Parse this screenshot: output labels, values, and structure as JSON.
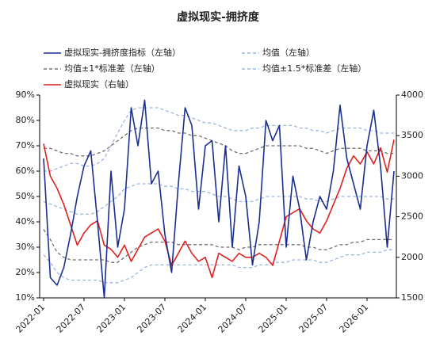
{
  "chart_data": {
    "type": "line",
    "title": "虚拟现实-拥挤度",
    "categories": [
      "2022-01",
      null,
      null,
      null,
      null,
      null,
      "2022-07",
      null,
      null,
      null,
      null,
      null,
      "2023-01",
      null,
      null,
      null,
      null,
      null,
      "2023-07",
      null,
      null,
      null,
      null,
      null,
      "2024-01",
      null,
      null,
      null,
      null,
      null,
      "2024-07",
      null,
      null,
      null,
      null,
      null,
      "2025-01",
      null,
      null,
      null,
      null,
      null,
      "2025-07",
      null,
      null,
      null,
      null,
      null,
      "2026-01",
      null,
      null,
      null,
      null
    ],
    "ylim": [
      10,
      90
    ],
    "yticks": [
      {
        "value": 10,
        "label": "10%"
      },
      {
        "value": 20,
        "label": "20%"
      },
      {
        "value": 30,
        "label": "30%"
      },
      {
        "value": 40,
        "label": "40%"
      },
      {
        "value": 50,
        "label": "50%"
      },
      {
        "value": 60,
        "label": "60%"
      },
      {
        "value": 70,
        "label": "70%"
      },
      {
        "value": 80,
        "label": "80%"
      },
      {
        "value": 90,
        "label": "90%"
      }
    ],
    "y2lim": [
      1500,
      4000
    ],
    "y2ticks": [
      1500,
      2000,
      2500,
      3000,
      3500,
      4000
    ],
    "series": [
      {
        "name": "虚拟现实-拥挤度指标（左轴）",
        "color": "#1a2f8f",
        "dash": false,
        "values": [
          65,
          18,
          15,
          22,
          35,
          50,
          62,
          68,
          40,
          10,
          60,
          30,
          45,
          85,
          70,
          88,
          55,
          60,
          35,
          20,
          55,
          85,
          78,
          45,
          70,
          72,
          40,
          70,
          30,
          62,
          50,
          23,
          40,
          80,
          72,
          78,
          30,
          58,
          45,
          25,
          40,
          50,
          45,
          60,
          86,
          65,
          55,
          45,
          70,
          84,
          62,
          30,
          60
        ]
      },
      {
        "name": "均值（左轴）",
        "color": "#9ab6e0",
        "dash": true,
        "values": [
          48,
          47,
          46,
          45,
          44,
          43,
          43,
          43,
          44,
          46,
          48,
          50,
          53,
          54,
          55,
          55,
          55,
          55,
          54,
          54,
          53,
          53,
          52,
          52,
          52,
          51,
          50,
          50,
          49,
          48,
          48,
          48,
          49,
          50,
          50,
          50,
          50,
          50,
          50,
          49,
          49,
          48,
          48,
          49,
          50,
          50,
          50,
          50,
          50,
          50,
          50,
          49,
          49
        ]
      },
      {
        "name": "均值±1*标准差（左轴）",
        "color": "#707070",
        "dash": true,
        "upper": [
          69,
          69,
          68,
          67,
          67,
          66,
          66,
          66,
          67,
          68,
          70,
          72,
          74,
          76,
          77,
          77,
          77,
          77,
          76,
          76,
          75,
          75,
          74,
          74,
          73,
          72,
          71,
          70,
          68,
          67,
          67,
          68,
          69,
          70,
          70,
          70,
          70,
          70,
          70,
          69,
          69,
          68,
          67,
          68,
          69,
          69,
          69,
          69,
          68,
          68,
          68,
          67,
          67
        ],
        "lower": [
          37,
          33,
          28,
          26,
          25,
          25,
          25,
          25,
          25,
          25,
          24,
          24,
          26,
          28,
          30,
          31,
          32,
          32,
          32,
          32,
          31,
          31,
          31,
          31,
          31,
          31,
          30,
          30,
          30,
          29,
          30,
          30,
          31,
          31,
          31,
          31,
          31,
          31,
          31,
          30,
          30,
          29,
          29,
          30,
          31,
          31,
          32,
          32,
          33,
          33,
          33,
          33,
          33
        ]
      },
      {
        "name": "均值±1.5*标准差（左轴）",
        "color": "#9ab6e0",
        "dash": true,
        "upper": [
          60,
          60,
          61,
          62,
          63,
          63,
          62,
          62,
          63,
          65,
          70,
          75,
          80,
          84,
          85,
          85,
          85,
          85,
          84,
          83,
          82,
          82,
          81,
          80,
          79,
          79,
          78,
          77,
          76,
          76,
          76,
          77,
          77,
          78,
          78,
          78,
          78,
          78,
          77,
          77,
          76,
          76,
          75,
          76,
          77,
          77,
          77,
          77,
          76,
          76,
          75,
          75,
          75
        ],
        "lower": [
          27,
          24,
          20,
          18,
          17,
          17,
          17,
          17,
          17,
          16,
          16,
          16,
          17,
          18,
          20,
          22,
          23,
          23,
          23,
          23,
          23,
          23,
          23,
          23,
          23,
          23,
          23,
          23,
          23,
          22,
          22,
          22,
          23,
          23,
          24,
          24,
          24,
          25,
          25,
          25,
          25,
          24,
          24,
          25,
          26,
          27,
          27,
          27,
          28,
          28,
          28,
          29,
          29
        ]
      },
      {
        "name": "虚拟现实（右轴）",
        "color": "#e0201f",
        "dash": false,
        "axis": "y2",
        "values": [
          3400,
          3000,
          2850,
          2650,
          2400,
          2150,
          2300,
          2400,
          2450,
          2150,
          2100,
          2000,
          2150,
          1950,
          2100,
          2250,
          2300,
          2350,
          2200,
          1900,
          2050,
          2200,
          2050,
          1950,
          2000,
          1750,
          2050,
          2000,
          1950,
          2050,
          2000,
          2000,
          2050,
          2000,
          1900,
          2200,
          2500,
          2550,
          2600,
          2450,
          2350,
          2300,
          2450,
          2650,
          2850,
          3100,
          3250,
          3150,
          3300,
          3150,
          3350,
          3050,
          3450
        ]
      }
    ]
  }
}
